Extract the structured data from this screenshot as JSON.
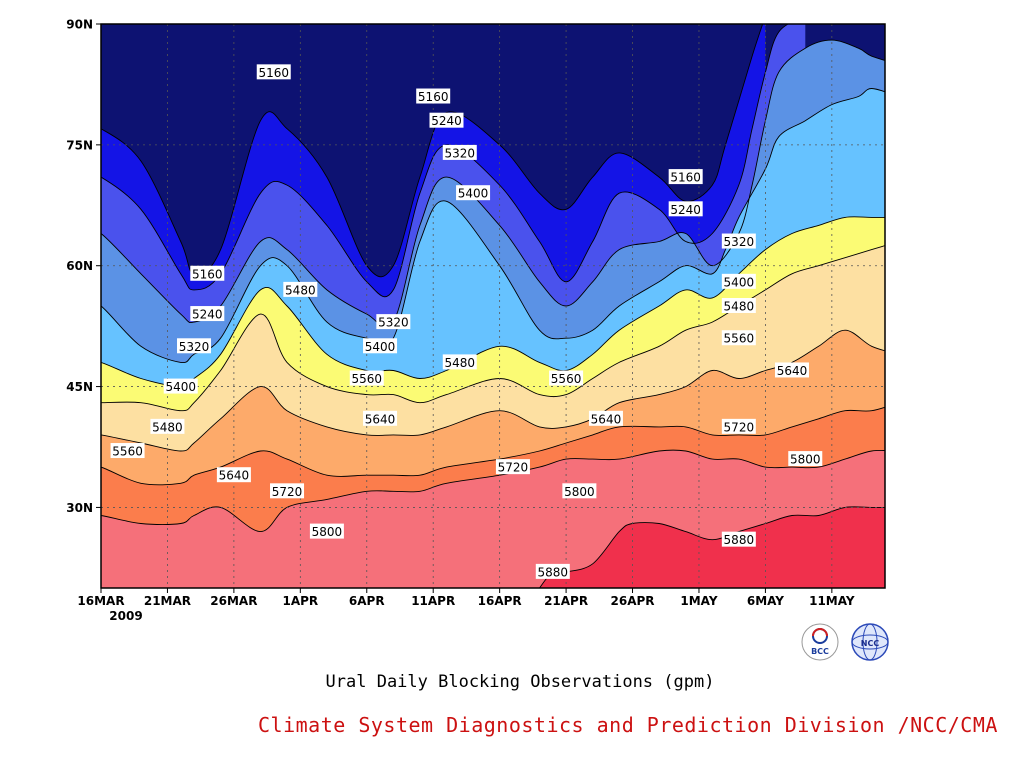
{
  "chart_data": {
    "type": "heatmap",
    "title": "",
    "xlabel": "",
    "ylabel": "",
    "x_tick_labels": [
      "16MAR",
      "21MAR",
      "26MAR",
      "1APR",
      "6APR",
      "11APR",
      "16APR",
      "21APR",
      "26APR",
      "1MAY",
      "6MAY",
      "11MAY"
    ],
    "x_year_label": "2009",
    "y_tick_labels": [
      "30N",
      "45N",
      "60N",
      "75N",
      "90N"
    ],
    "y_tick_values": [
      30,
      45,
      60,
      75,
      90
    ],
    "ylim": [
      20,
      90
    ],
    "x_range_days": [
      0,
      59
    ],
    "contour_levels": [
      5160,
      5240,
      5320,
      5400,
      5480,
      5560,
      5640,
      5720,
      5800,
      5880
    ],
    "level_colors": [
      "#0d1272",
      "#1414e6",
      "#4a52ed",
      "#5b92e5",
      "#66c2ff",
      "#fbfb74",
      "#fde0a2",
      "#fdaa6a",
      "#fb7d4c",
      "#f5707a",
      "#f0304c"
    ],
    "contour_isolines": [
      {
        "level": 5160,
        "points": [
          [
            -1,
            77
          ],
          [
            0,
            77
          ],
          [
            3,
            73
          ],
          [
            6,
            63
          ],
          [
            7,
            59
          ],
          [
            9,
            62
          ],
          [
            12,
            78
          ],
          [
            14,
            77
          ],
          [
            17,
            71
          ],
          [
            20,
            60
          ],
          [
            22,
            60
          ],
          [
            24,
            71
          ],
          [
            26,
            79
          ],
          [
            30,
            75
          ],
          [
            33,
            69
          ],
          [
            35,
            67
          ],
          [
            37,
            71
          ],
          [
            39,
            74
          ],
          [
            42,
            71
          ],
          [
            44,
            68
          ],
          [
            46,
            70
          ],
          [
            47,
            75
          ],
          [
            49,
            86
          ],
          [
            50,
            91
          ]
        ]
      },
      {
        "level": 5240,
        "points": [
          [
            -1,
            71
          ],
          [
            0,
            71
          ],
          [
            3,
            67
          ],
          [
            6,
            59
          ],
          [
            7,
            57
          ],
          [
            9,
            59
          ],
          [
            12,
            69
          ],
          [
            14,
            70
          ],
          [
            17,
            65
          ],
          [
            20,
            58
          ],
          [
            22,
            57
          ],
          [
            24,
            69
          ],
          [
            26,
            75
          ],
          [
            30,
            70
          ],
          [
            33,
            63
          ],
          [
            35,
            58
          ],
          [
            37,
            63
          ],
          [
            39,
            69
          ],
          [
            42,
            67
          ],
          [
            44,
            63
          ],
          [
            46,
            64
          ],
          [
            48,
            70
          ],
          [
            49,
            77
          ],
          [
            50,
            84
          ],
          [
            51,
            89
          ],
          [
            53,
            91
          ]
        ]
      },
      {
        "level": 5320,
        "points": [
          [
            -1,
            64
          ],
          [
            0,
            64
          ],
          [
            3,
            59
          ],
          [
            6,
            54
          ],
          [
            7,
            53
          ],
          [
            9,
            55
          ],
          [
            12,
            63
          ],
          [
            14,
            62
          ],
          [
            17,
            57
          ],
          [
            20,
            54
          ],
          [
            22,
            53
          ],
          [
            24,
            65
          ],
          [
            26,
            71
          ],
          [
            30,
            65
          ],
          [
            33,
            58
          ],
          [
            35,
            55
          ],
          [
            37,
            58
          ],
          [
            39,
            62
          ],
          [
            42,
            63
          ],
          [
            44,
            64
          ],
          [
            46,
            60
          ],
          [
            48,
            64
          ],
          [
            49,
            70
          ],
          [
            50,
            78
          ],
          [
            51,
            84
          ],
          [
            53,
            87
          ],
          [
            55,
            88
          ],
          [
            57,
            87
          ],
          [
            58,
            86
          ],
          [
            60,
            85
          ]
        ]
      },
      {
        "level": 5400,
        "points": [
          [
            -1,
            55
          ],
          [
            0,
            55
          ],
          [
            3,
            50
          ],
          [
            6,
            48
          ],
          [
            7,
            49
          ],
          [
            9,
            51
          ],
          [
            12,
            60
          ],
          [
            14,
            60
          ],
          [
            17,
            53
          ],
          [
            20,
            51
          ],
          [
            22,
            51
          ],
          [
            24,
            63
          ],
          [
            26,
            68
          ],
          [
            30,
            60
          ],
          [
            33,
            52
          ],
          [
            35,
            51
          ],
          [
            37,
            52
          ],
          [
            39,
            55
          ],
          [
            42,
            58
          ],
          [
            44,
            60
          ],
          [
            46,
            59
          ],
          [
            47,
            62
          ],
          [
            48,
            66
          ],
          [
            50,
            72
          ],
          [
            51,
            76
          ],
          [
            53,
            78
          ],
          [
            55,
            80
          ],
          [
            57,
            81
          ],
          [
            58,
            82
          ],
          [
            60,
            81
          ]
        ]
      },
      {
        "level": 5480,
        "points": [
          [
            -1,
            48
          ],
          [
            0,
            48
          ],
          [
            3,
            46
          ],
          [
            6,
            45
          ],
          [
            7,
            46
          ],
          [
            9,
            49
          ],
          [
            12,
            57
          ],
          [
            14,
            55
          ],
          [
            17,
            49
          ],
          [
            20,
            47
          ],
          [
            22,
            47
          ],
          [
            24,
            46
          ],
          [
            26,
            47
          ],
          [
            30,
            50
          ],
          [
            33,
            48
          ],
          [
            35,
            47
          ],
          [
            37,
            49
          ],
          [
            39,
            52
          ],
          [
            42,
            55
          ],
          [
            44,
            57
          ],
          [
            46,
            56
          ],
          [
            48,
            59
          ],
          [
            50,
            62
          ],
          [
            52,
            64
          ],
          [
            54,
            65
          ],
          [
            56,
            66
          ],
          [
            58,
            66
          ],
          [
            60,
            66
          ]
        ]
      },
      {
        "level": 5560,
        "points": [
          [
            -1,
            43
          ],
          [
            0,
            43
          ],
          [
            3,
            43
          ],
          [
            6,
            42
          ],
          [
            7,
            43
          ],
          [
            9,
            47
          ],
          [
            12,
            54
          ],
          [
            14,
            48
          ],
          [
            17,
            45
          ],
          [
            20,
            44
          ],
          [
            22,
            44
          ],
          [
            24,
            43
          ],
          [
            26,
            44
          ],
          [
            30,
            46
          ],
          [
            33,
            44
          ],
          [
            35,
            44
          ],
          [
            37,
            46
          ],
          [
            39,
            48
          ],
          [
            42,
            50
          ],
          [
            44,
            52
          ],
          [
            46,
            53
          ],
          [
            48,
            55
          ],
          [
            50,
            57
          ],
          [
            52,
            59
          ],
          [
            54,
            60
          ],
          [
            56,
            61
          ],
          [
            58,
            62
          ],
          [
            60,
            63
          ]
        ]
      },
      {
        "level": 5640,
        "points": [
          [
            -1,
            39
          ],
          [
            0,
            39
          ],
          [
            3,
            38
          ],
          [
            6,
            37
          ],
          [
            7,
            38
          ],
          [
            9,
            41
          ],
          [
            12,
            45
          ],
          [
            14,
            42
          ],
          [
            17,
            40
          ],
          [
            20,
            39
          ],
          [
            22,
            39
          ],
          [
            24,
            39
          ],
          [
            26,
            40
          ],
          [
            30,
            42
          ],
          [
            33,
            40
          ],
          [
            35,
            40
          ],
          [
            37,
            41
          ],
          [
            39,
            43
          ],
          [
            42,
            44
          ],
          [
            44,
            45
          ],
          [
            46,
            47
          ],
          [
            48,
            46
          ],
          [
            50,
            47
          ],
          [
            52,
            48
          ],
          [
            54,
            50
          ],
          [
            56,
            52
          ],
          [
            58,
            50
          ],
          [
            60,
            49
          ]
        ]
      },
      {
        "level": 5720,
        "points": [
          [
            -1,
            35
          ],
          [
            0,
            35
          ],
          [
            3,
            33
          ],
          [
            6,
            33
          ],
          [
            7,
            34
          ],
          [
            9,
            35
          ],
          [
            12,
            37
          ],
          [
            14,
            36
          ],
          [
            17,
            34
          ],
          [
            20,
            34
          ],
          [
            22,
            34
          ],
          [
            24,
            34
          ],
          [
            26,
            35
          ],
          [
            30,
            36
          ],
          [
            33,
            37
          ],
          [
            35,
            38
          ],
          [
            37,
            39
          ],
          [
            39,
            40
          ],
          [
            42,
            40
          ],
          [
            44,
            40
          ],
          [
            46,
            39
          ],
          [
            48,
            39
          ],
          [
            50,
            39
          ],
          [
            52,
            40
          ],
          [
            54,
            41
          ],
          [
            56,
            42
          ],
          [
            58,
            42
          ],
          [
            60,
            43
          ]
        ]
      },
      {
        "level": 5800,
        "points": [
          [
            -1,
            29
          ],
          [
            0,
            29
          ],
          [
            3,
            28
          ],
          [
            6,
            28
          ],
          [
            7,
            29
          ],
          [
            9,
            30
          ],
          [
            12,
            27
          ],
          [
            14,
            30
          ],
          [
            17,
            31
          ],
          [
            20,
            32
          ],
          [
            22,
            32
          ],
          [
            24,
            32
          ],
          [
            26,
            33
          ],
          [
            30,
            34
          ],
          [
            33,
            35
          ],
          [
            35,
            36
          ],
          [
            37,
            36
          ],
          [
            39,
            36
          ],
          [
            42,
            37
          ],
          [
            44,
            37
          ],
          [
            46,
            36
          ],
          [
            48,
            36
          ],
          [
            50,
            35
          ],
          [
            52,
            35
          ],
          [
            54,
            35
          ],
          [
            56,
            36
          ],
          [
            58,
            37
          ],
          [
            60,
            37
          ]
        ]
      },
      {
        "level": 5880,
        "points": [
          [
            33,
            20
          ],
          [
            34,
            22
          ],
          [
            35,
            22
          ],
          [
            37,
            23
          ],
          [
            39,
            27
          ],
          [
            40,
            28
          ],
          [
            42,
            28
          ],
          [
            44,
            27
          ],
          [
            46,
            26
          ],
          [
            48,
            27
          ],
          [
            50,
            28
          ],
          [
            52,
            29
          ],
          [
            54,
            29
          ],
          [
            56,
            30
          ],
          [
            58,
            30
          ],
          [
            60,
            30
          ]
        ]
      }
    ],
    "contour_labels": [
      {
        "text": "5160",
        "x": 13,
        "y": 84
      },
      {
        "text": "5160",
        "x": 25,
        "y": 81
      },
      {
        "text": "5240",
        "x": 26,
        "y": 78
      },
      {
        "text": "5320",
        "x": 27,
        "y": 74
      },
      {
        "text": "5400",
        "x": 28,
        "y": 69
      },
      {
        "text": "5160",
        "x": 44,
        "y": 71
      },
      {
        "text": "5240",
        "x": 44,
        "y": 67
      },
      {
        "text": "5320",
        "x": 48,
        "y": 63
      },
      {
        "text": "5400",
        "x": 48,
        "y": 58
      },
      {
        "text": "5480",
        "x": 48,
        "y": 55
      },
      {
        "text": "5560",
        "x": 48,
        "y": 51
      },
      {
        "text": "5640",
        "x": 52,
        "y": 47
      },
      {
        "text": "5720",
        "x": 48,
        "y": 40
      },
      {
        "text": "5800",
        "x": 53,
        "y": 36
      },
      {
        "text": "5880",
        "x": 48,
        "y": 26
      },
      {
        "text": "5160",
        "x": 8,
        "y": 59
      },
      {
        "text": "5240",
        "x": 8,
        "y": 54
      },
      {
        "text": "5320",
        "x": 7,
        "y": 50
      },
      {
        "text": "5400",
        "x": 6,
        "y": 45
      },
      {
        "text": "5480",
        "x": 5,
        "y": 40
      },
      {
        "text": "5560",
        "x": 2,
        "y": 37
      },
      {
        "text": "5640",
        "x": 10,
        "y": 34
      },
      {
        "text": "5480",
        "x": 15,
        "y": 57
      },
      {
        "text": "5320",
        "x": 22,
        "y": 53
      },
      {
        "text": "5400",
        "x": 21,
        "y": 50
      },
      {
        "text": "5560",
        "x": 20,
        "y": 46
      },
      {
        "text": "5640",
        "x": 21,
        "y": 41
      },
      {
        "text": "5480",
        "x": 27,
        "y": 48
      },
      {
        "text": "5560",
        "x": 35,
        "y": 46
      },
      {
        "text": "5640",
        "x": 38,
        "y": 41
      },
      {
        "text": "5720",
        "x": 31,
        "y": 35
      },
      {
        "text": "5720",
        "x": 14,
        "y": 32
      },
      {
        "text": "5800",
        "x": 17,
        "y": 27
      },
      {
        "text": "5800",
        "x": 36,
        "y": 32
      },
      {
        "text": "5880",
        "x": 34,
        "y": 22
      },
      {
        "text": "5400",
        "x": 53,
        "y": 91
      }
    ]
  },
  "caption": "Ural Daily Blocking Observations (gpm)",
  "credit": "Climate System Diagnostics and Prediction Division /NCC/CMA",
  "logos": {
    "left_logo_text": "BCC",
    "right_logo_text": "NCC"
  }
}
